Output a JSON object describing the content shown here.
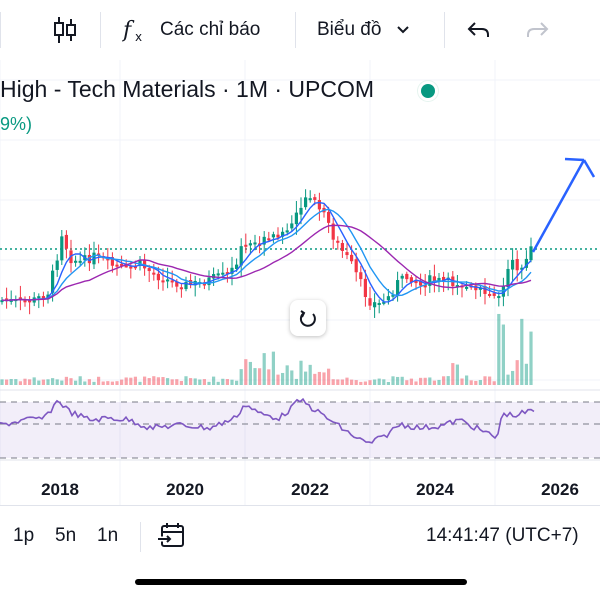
{
  "toolbar": {
    "indicators_label": "Các chỉ báo",
    "chart_type_label": "Biểu đồ",
    "icons": {
      "candles": "candlestick-icon",
      "indicators": "fx-icon",
      "dropdown": "chevron-down-icon",
      "undo": "undo-icon",
      "redo": "redo-icon"
    }
  },
  "header": {
    "title": "High - Tech Materials · 1M · UPCOM",
    "change": "9%)",
    "market_status_color": "#089981"
  },
  "colors": {
    "up": "#089981",
    "down": "#f23645",
    "ma_fast": "#2962ff",
    "ma_slow": "#9c27b0",
    "ma_mid": "#2196f3",
    "rsi": "#7e57c2",
    "arrow": "#2962ff"
  },
  "chart_data": {
    "type": "candlestick",
    "x_ticks": [
      "2018",
      "2020",
      "2022",
      "2024",
      "2026"
    ],
    "indicators": [
      "moving-average",
      "volume",
      "rsi"
    ]
  },
  "bottom": {
    "ranges": [
      "1p",
      "5n",
      "1n"
    ],
    "time": "14:41:47 (UTC+7)"
  }
}
